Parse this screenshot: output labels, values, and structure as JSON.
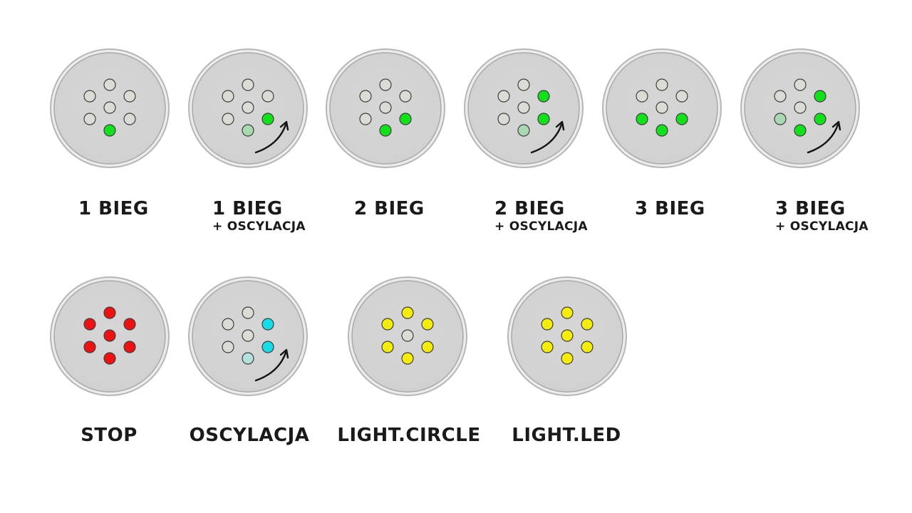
{
  "colors": {
    "off": "#dddbd6",
    "green": "#11e01a",
    "green_dim": "#a9d9b0",
    "red": "#ee1111",
    "cyan": "#16dbe8",
    "cyan_dim": "#b2e0dc",
    "yellow": "#f6ec0a",
    "disc": "#d1d1d1",
    "disc_edge": "#b6b6b6"
  },
  "panels": [
    {
      "id": "1-bieg",
      "label": "1 BIEG",
      "sublabel": "",
      "leds": {
        "top": "off",
        "upper_left": "off",
        "upper_right": "off",
        "center": "off",
        "lower_left": "off",
        "lower_right": "off",
        "bottom": "green"
      },
      "oscillation_arrow": false
    },
    {
      "id": "1-bieg-oscylacja",
      "label": "1 BIEG",
      "sublabel": "+ OSCYLACJA",
      "leds": {
        "top": "off",
        "upper_left": "off",
        "upper_right": "off",
        "center": "off",
        "lower_left": "off",
        "lower_right": "green",
        "bottom": "green_dim"
      },
      "oscillation_arrow": true
    },
    {
      "id": "2-bieg",
      "label": "2 BIEG",
      "sublabel": "",
      "leds": {
        "top": "off",
        "upper_left": "off",
        "upper_right": "off",
        "center": "off",
        "lower_left": "off",
        "lower_right": "green",
        "bottom": "green"
      },
      "oscillation_arrow": false
    },
    {
      "id": "2-bieg-oscylacja",
      "label": "2 BIEG",
      "sublabel": "+ OSCYLACJA",
      "leds": {
        "top": "off",
        "upper_left": "off",
        "upper_right": "green",
        "center": "off",
        "lower_left": "off",
        "lower_right": "green",
        "bottom": "green_dim"
      },
      "oscillation_arrow": true
    },
    {
      "id": "3-bieg",
      "label": "3 BIEG",
      "sublabel": "",
      "leds": {
        "top": "off",
        "upper_left": "off",
        "upper_right": "off",
        "center": "off",
        "lower_left": "green",
        "lower_right": "green",
        "bottom": "green"
      },
      "oscillation_arrow": false
    },
    {
      "id": "3-bieg-oscylacja",
      "label": "3 BIEG",
      "sublabel": "+ OSCYLACJA",
      "leds": {
        "top": "off",
        "upper_left": "off",
        "upper_right": "green",
        "center": "off",
        "lower_left": "green_dim",
        "lower_right": "green",
        "bottom": "green"
      },
      "oscillation_arrow": true
    },
    {
      "id": "stop",
      "label": "STOP",
      "sublabel": "",
      "leds": {
        "top": "red",
        "upper_left": "red",
        "upper_right": "red",
        "center": "red",
        "lower_left": "red",
        "lower_right": "red",
        "bottom": "red"
      },
      "oscillation_arrow": false
    },
    {
      "id": "oscylacja",
      "label": "OSCYLACJA",
      "sublabel": "",
      "leds": {
        "top": "off",
        "upper_left": "off",
        "upper_right": "cyan",
        "center": "off",
        "lower_left": "off",
        "lower_right": "cyan",
        "bottom": "cyan_dim"
      },
      "oscillation_arrow": true
    },
    {
      "id": "light-circle",
      "label": "LIGHT.CIRCLE",
      "sublabel": "",
      "leds": {
        "top": "yellow",
        "upper_left": "yellow",
        "upper_right": "yellow",
        "center": "off",
        "lower_left": "yellow",
        "lower_right": "yellow",
        "bottom": "yellow"
      },
      "oscillation_arrow": false
    },
    {
      "id": "light-led",
      "label": "LIGHT.LED",
      "sublabel": "",
      "leds": {
        "top": "yellow",
        "upper_left": "yellow",
        "upper_right": "yellow",
        "center": "yellow",
        "lower_left": "yellow",
        "lower_right": "yellow",
        "bottom": "yellow"
      },
      "oscillation_arrow": false
    }
  ]
}
